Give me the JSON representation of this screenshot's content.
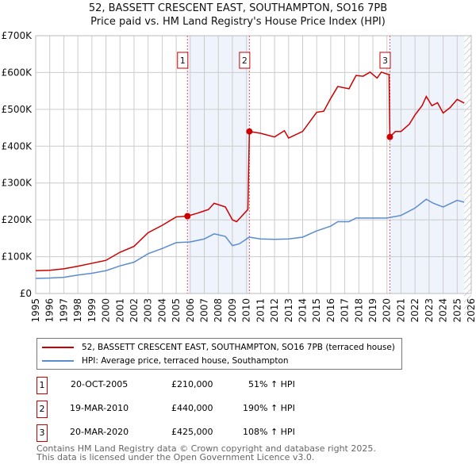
{
  "title": "52, BASSETT CRESCENT EAST, SOUTHAMPTON, SO16 7PB",
  "subtitle": "Price paid vs. HM Land Registry's House Price Index (HPI)",
  "legend": [
    {
      "label": "52, BASSETT CRESCENT EAST, SOUTHAMPTON, SO16 7PB (terraced house)",
      "color": "#cc0000"
    },
    {
      "label": "HPI: Average price, terraced house, Southampton",
      "color": "#5b8ccf"
    }
  ],
  "transactions": [
    {
      "n": "1",
      "date": "20-OCT-2005",
      "price": "£210,000",
      "hpi": "51% ↑ HPI"
    },
    {
      "n": "2",
      "date": "19-MAR-2010",
      "price": "£440,000",
      "hpi": "190% ↑ HPI"
    },
    {
      "n": "3",
      "date": "20-MAR-2020",
      "price": "£425,000",
      "hpi": "108% ↑ HPI"
    }
  ],
  "footer": [
    "Contains HM Land Registry data © Crown copyright and database right 2025.",
    "This data is licensed under the Open Government Licence v3.0."
  ],
  "chart_data": {
    "type": "line",
    "xlim": [
      1995,
      2026
    ],
    "ylim": [
      0,
      700000
    ],
    "yticks": [
      {
        "v": 0,
        "l": "£0"
      },
      {
        "v": 100000,
        "l": "£100K"
      },
      {
        "v": 200000,
        "l": "£200K"
      },
      {
        "v": 300000,
        "l": "£300K"
      },
      {
        "v": 400000,
        "l": "£400K"
      },
      {
        "v": 500000,
        "l": "£500K"
      },
      {
        "v": 600000,
        "l": "£600K"
      },
      {
        "v": 700000,
        "l": "£700K"
      }
    ],
    "xticks": [
      "1995",
      "1996",
      "1997",
      "1998",
      "1999",
      "2000",
      "2001",
      "2002",
      "2003",
      "2004",
      "2005",
      "2006",
      "2007",
      "2008",
      "2009",
      "2010",
      "2011",
      "2012",
      "2013",
      "2014",
      "2015",
      "2016",
      "2017",
      "2018",
      "2019",
      "2020",
      "2021",
      "2022",
      "2023",
      "2024",
      "2025",
      "2026"
    ],
    "shaded": [
      [
        2005.8,
        2010.21
      ],
      [
        2020.21,
        2025.5
      ]
    ],
    "markers": [
      {
        "label": "1",
        "x": 2005.8,
        "y": 210000
      },
      {
        "label": "2",
        "x": 2010.21,
        "y": 440000
      },
      {
        "label": "3",
        "x": 2020.21,
        "y": 425000
      }
    ],
    "series": [
      {
        "name": "52, BASSETT CRESCENT EAST, SOUTHAMPTON, SO16 7PB (terraced house)",
        "color": "#cc0000",
        "points": [
          [
            1995,
            62000
          ],
          [
            1996,
            63000
          ],
          [
            1997,
            67000
          ],
          [
            1998,
            74000
          ],
          [
            1999,
            82000
          ],
          [
            2000,
            90000
          ],
          [
            2001,
            112000
          ],
          [
            2002,
            128000
          ],
          [
            2003,
            165000
          ],
          [
            2004,
            185000
          ],
          [
            2005,
            208000
          ],
          [
            2005.8,
            210000
          ],
          [
            2006.5,
            218000
          ],
          [
            2007.3,
            228000
          ],
          [
            2007.7,
            245000
          ],
          [
            2008.5,
            235000
          ],
          [
            2009,
            200000
          ],
          [
            2009.3,
            195000
          ],
          [
            2010.1,
            228000
          ],
          [
            2010.21,
            440000
          ],
          [
            2011,
            435000
          ],
          [
            2012,
            425000
          ],
          [
            2012.7,
            442000
          ],
          [
            2013,
            422000
          ],
          [
            2014,
            440000
          ],
          [
            2015,
            492000
          ],
          [
            2015.5,
            495000
          ],
          [
            2016,
            530000
          ],
          [
            2016.5,
            562000
          ],
          [
            2017.3,
            556000
          ],
          [
            2017.8,
            592000
          ],
          [
            2018.3,
            590000
          ],
          [
            2018.8,
            601000
          ],
          [
            2019.3,
            585000
          ],
          [
            2019.6,
            601000
          ],
          [
            2020.15,
            594000
          ],
          [
            2020.21,
            425000
          ],
          [
            2020.6,
            440000
          ],
          [
            2021,
            440000
          ],
          [
            2021.6,
            460000
          ],
          [
            2022,
            485000
          ],
          [
            2022.5,
            510000
          ],
          [
            2022.8,
            535000
          ],
          [
            2023.2,
            510000
          ],
          [
            2023.6,
            518000
          ],
          [
            2024,
            490000
          ],
          [
            2024.5,
            505000
          ],
          [
            2025,
            527000
          ],
          [
            2025.5,
            517000
          ]
        ]
      },
      {
        "name": "HPI: Average price, terraced house, Southampton",
        "color": "#5b8ccf",
        "points": [
          [
            1995,
            41000
          ],
          [
            1996,
            42000
          ],
          [
            1997,
            44000
          ],
          [
            1998,
            50000
          ],
          [
            1999,
            55000
          ],
          [
            2000,
            62000
          ],
          [
            2001,
            75000
          ],
          [
            2002,
            85000
          ],
          [
            2003,
            108000
          ],
          [
            2004,
            122000
          ],
          [
            2005,
            138000
          ],
          [
            2006,
            140000
          ],
          [
            2007,
            148000
          ],
          [
            2007.7,
            162000
          ],
          [
            2008.5,
            155000
          ],
          [
            2009,
            130000
          ],
          [
            2009.5,
            135000
          ],
          [
            2010.2,
            153000
          ],
          [
            2011,
            148000
          ],
          [
            2012,
            147000
          ],
          [
            2013,
            148000
          ],
          [
            2014,
            153000
          ],
          [
            2015,
            170000
          ],
          [
            2016,
            183000
          ],
          [
            2016.5,
            195000
          ],
          [
            2017.3,
            195000
          ],
          [
            2017.8,
            205000
          ],
          [
            2019,
            205000
          ],
          [
            2020,
            205000
          ],
          [
            2021,
            212000
          ],
          [
            2022,
            232000
          ],
          [
            2022.8,
            256000
          ],
          [
            2023.3,
            245000
          ],
          [
            2024,
            235000
          ],
          [
            2025,
            253000
          ],
          [
            2025.5,
            248000
          ]
        ]
      }
    ]
  }
}
